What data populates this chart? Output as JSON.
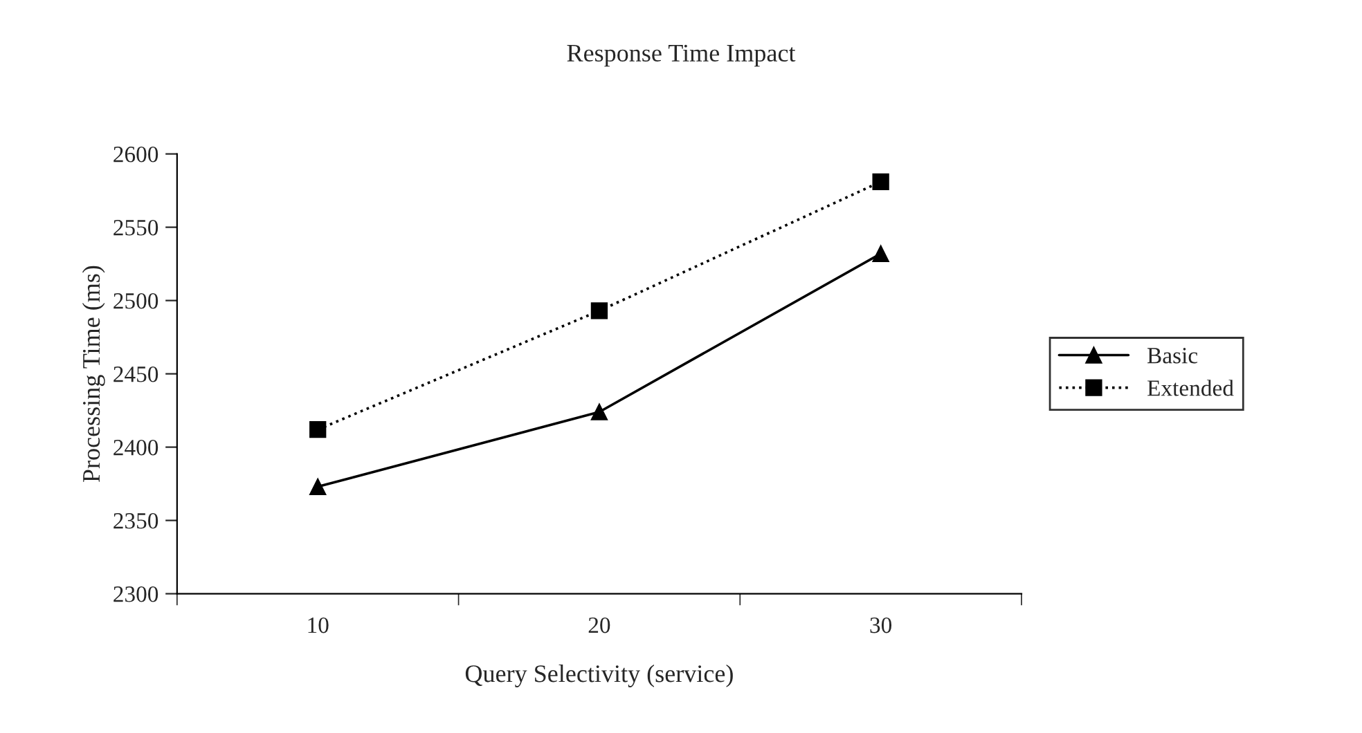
{
  "chart_data": {
    "type": "line",
    "title": "Response Time Impact",
    "xlabel": "Query Selectivity (service)",
    "ylabel": "Processing Time (ms)",
    "categories": [
      "10",
      "20",
      "30"
    ],
    "series": [
      {
        "name": "Basic",
        "color": "#000000",
        "values": [
          2373,
          2424,
          2532
        ],
        "marker": "triangle",
        "line_style": "solid"
      },
      {
        "name": "Extended",
        "color": "#000000",
        "values": [
          2412,
          2493,
          2581
        ],
        "marker": "square",
        "line_style": "dotted"
      }
    ],
    "ylim": [
      2300,
      2600
    ],
    "yticks": [
      2300,
      2350,
      2400,
      2450,
      2500,
      2550,
      2600
    ],
    "grid": false,
    "legend": "right"
  }
}
